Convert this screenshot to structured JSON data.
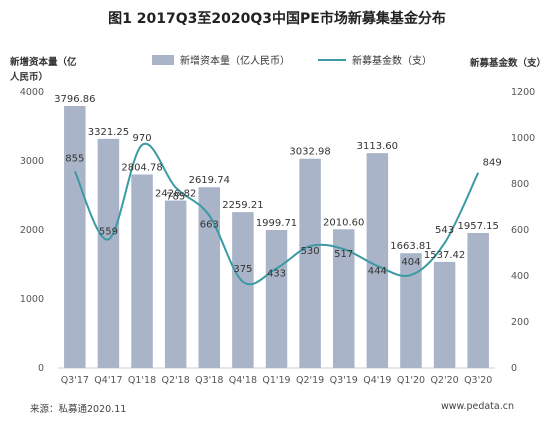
{
  "chart_data": {
    "type": "bar",
    "title": "图1 2017Q3至2020Q3中国PE市场新募集基金分布",
    "ylabel": "新增资本量（亿人民币）",
    "y2label": "新募基金数（支）",
    "categories": [
      "Q3'17",
      "Q4'17",
      "Q1'18",
      "Q2'18",
      "Q3'18",
      "Q4'18",
      "Q1'19",
      "Q2'19",
      "Q3'19",
      "Q4'19",
      "Q1'20",
      "Q2'20",
      "Q3'20"
    ],
    "series": [
      {
        "name": "新增资本量（亿人民币）",
        "type": "bar",
        "values": [
          3796.86,
          3321.25,
          2804.78,
          2426.82,
          2619.74,
          2259.21,
          1999.71,
          3032.98,
          2010.6,
          3113.6,
          1663.81,
          1537.42,
          1957.15
        ],
        "labels": [
          "3796.86",
          "3321.25",
          "2804.78",
          "2426.82",
          "2619.74",
          "2259.21",
          "1999.71",
          "3032.98",
          "2010.60",
          "3113.60",
          "1663.81",
          "1537.42",
          "1957.15"
        ]
      },
      {
        "name": "新募基金数（支）",
        "type": "line",
        "axis": "right",
        "values": [
          855,
          559,
          970,
          785,
          663,
          375,
          433,
          530,
          517,
          444,
          404,
          543,
          849
        ]
      }
    ],
    "ylim": [
      0,
      4000
    ],
    "yticks": [
      0,
      1000,
      2000,
      3000,
      4000
    ],
    "y2lim": [
      0,
      1200
    ],
    "y2ticks": [
      0,
      200,
      400,
      600,
      800,
      1000,
      1200
    ],
    "grid": false,
    "legend": "top",
    "colors": {
      "bar": "#aab4c8",
      "line": "#3b9aa3"
    }
  },
  "footer": {
    "source": "来源：私募通2020.11",
    "site": "www.pedata.cn"
  }
}
